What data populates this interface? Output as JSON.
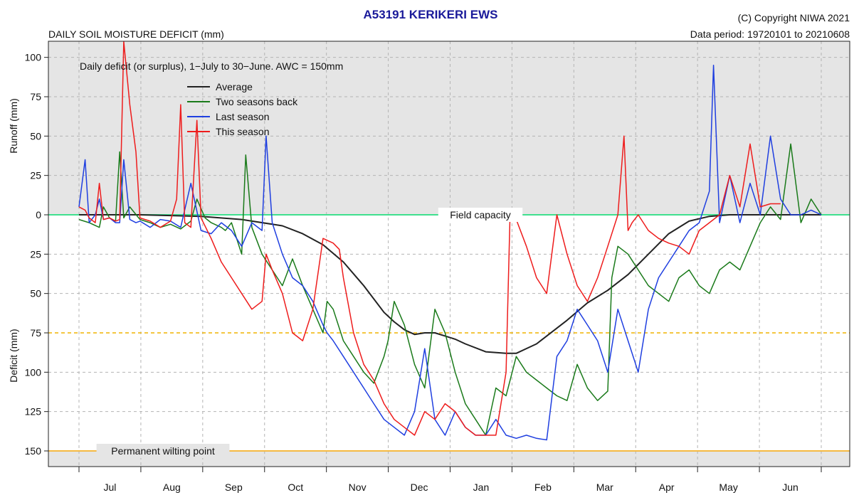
{
  "header": {
    "title": "A53191  KERIKERI EWS",
    "subtitle": "DAILY SOIL MOISTURE DEFICIT (mm)",
    "copyright": "(C) Copyright NIWA  2021",
    "data_period": "Data period:  19720101  to  20210608"
  },
  "chart_data": {
    "type": "line",
    "title": "A53191  KERIKERI EWS",
    "subtitle": "DAILY SOIL MOISTURE DEFICIT (mm)",
    "annotation": "Daily deficit (or surplus), 1−July to 30−June.  AWC = 150mm",
    "ylabel_top": "Runoff (mm)",
    "ylabel_bottom": "Deficit (mm)",
    "x_unit": "day of season (0 = 1 July)",
    "xlim": [
      0,
      365
    ],
    "ylim": [
      -110,
      160
    ],
    "y_axis_note": "Upper part (shaded) shows runoff above field capacity; lower part shows deficit, increasing downward.",
    "month_labels": [
      "Jul",
      "Aug",
      "Sep",
      "Oct",
      "Nov",
      "Dec",
      "Jan",
      "Feb",
      "Mar",
      "Apr",
      "May",
      "Jun"
    ],
    "y_ticks": [
      {
        "value": -100,
        "label": "100"
      },
      {
        "value": -75,
        "label": "75"
      },
      {
        "value": -50,
        "label": "50"
      },
      {
        "value": -25,
        "label": "25"
      },
      {
        "value": 0,
        "label": "0"
      },
      {
        "value": 25,
        "label": "25"
      },
      {
        "value": 50,
        "label": "50"
      },
      {
        "value": 75,
        "label": "75"
      },
      {
        "value": 100,
        "label": "100"
      },
      {
        "value": 125,
        "label": "125"
      },
      {
        "value": 150,
        "label": "150"
      }
    ],
    "reference_lines": [
      {
        "name": "Field capacity",
        "value": 0,
        "color": "#3fe08f",
        "style": "solid"
      },
      {
        "name": "",
        "value": 75,
        "color": "#f0b400",
        "style": "dashed"
      },
      {
        "name": "Permanent wilting point",
        "value": 150,
        "color": "#f5b942",
        "style": "solid"
      }
    ],
    "colors": {
      "surplus_background": "#e5e5e5",
      "grid": "#b4b4b4"
    },
    "legend_position": "top-left",
    "series": [
      {
        "name": "Average",
        "color": "#222222",
        "x": [
          0,
          30,
          60,
          80,
          100,
          110,
          120,
          130,
          140,
          150,
          155,
          160,
          165,
          170,
          175,
          180,
          185,
          190,
          200,
          210,
          215,
          220,
          225,
          230,
          240,
          250,
          260,
          270,
          280,
          290,
          300,
          310,
          320,
          330,
          340,
          350,
          365
        ],
        "y": [
          0,
          0,
          1,
          3,
          7,
          12,
          19,
          30,
          45,
          62,
          68,
          73,
          76,
          75,
          75,
          77,
          79,
          82,
          87,
          88,
          88,
          85,
          82,
          77,
          67,
          56,
          48,
          38,
          25,
          12,
          4,
          1,
          0,
          0,
          0,
          0,
          0
        ]
      },
      {
        "name": "Two seasons back",
        "color": "#1a7a1a",
        "x": [
          0,
          5,
          10,
          12,
          15,
          18,
          20,
          22,
          25,
          30,
          35,
          40,
          45,
          50,
          55,
          58,
          62,
          65,
          70,
          72,
          75,
          80,
          82,
          85,
          90,
          95,
          100,
          105,
          110,
          115,
          120,
          122,
          125,
          130,
          135,
          140,
          145,
          150,
          152,
          155,
          160,
          165,
          170,
          175,
          180,
          185,
          190,
          195,
          200,
          205,
          210,
          215,
          220,
          225,
          230,
          235,
          240,
          245,
          250,
          255,
          260,
          262,
          265,
          270,
          275,
          280,
          285,
          290,
          295,
          300,
          305,
          310,
          315,
          320,
          325,
          330,
          335,
          340,
          345,
          350,
          355,
          360,
          365
        ],
        "y": [
          3,
          5,
          8,
          -5,
          2,
          4,
          -40,
          2,
          -5,
          3,
          5,
          8,
          6,
          9,
          4,
          -10,
          2,
          5,
          8,
          10,
          5,
          25,
          -38,
          8,
          25,
          35,
          45,
          28,
          45,
          60,
          75,
          55,
          60,
          80,
          90,
          100,
          107,
          90,
          80,
          55,
          70,
          95,
          110,
          60,
          75,
          100,
          120,
          130,
          140,
          110,
          115,
          90,
          100,
          105,
          110,
          115,
          118,
          95,
          110,
          118,
          112,
          40,
          20,
          25,
          35,
          45,
          50,
          55,
          40,
          35,
          45,
          50,
          35,
          30,
          35,
          20,
          5,
          -5,
          3,
          -45,
          5,
          -10,
          0
        ]
      },
      {
        "name": "Last season",
        "color": "#1f3fe0",
        "x": [
          0,
          3,
          5,
          8,
          10,
          12,
          15,
          18,
          20,
          22,
          25,
          28,
          30,
          35,
          40,
          45,
          50,
          55,
          60,
          65,
          70,
          75,
          80,
          85,
          90,
          92,
          95,
          100,
          105,
          110,
          115,
          120,
          122,
          125,
          130,
          135,
          140,
          145,
          150,
          155,
          160,
          165,
          170,
          175,
          180,
          185,
          190,
          195,
          200,
          205,
          210,
          215,
          220,
          225,
          230,
          235,
          240,
          245,
          250,
          255,
          260,
          265,
          270,
          275,
          280,
          285,
          290,
          295,
          300,
          305,
          310,
          312,
          315,
          320,
          325,
          330,
          335,
          340,
          345,
          350,
          355,
          360,
          365
        ],
        "y": [
          -5,
          -35,
          5,
          0,
          -10,
          3,
          2,
          5,
          5,
          -35,
          3,
          5,
          4,
          8,
          3,
          4,
          8,
          -20,
          10,
          12,
          5,
          10,
          20,
          5,
          10,
          -50,
          5,
          25,
          40,
          45,
          55,
          70,
          75,
          80,
          90,
          100,
          110,
          120,
          130,
          135,
          140,
          125,
          85,
          130,
          140,
          125,
          135,
          140,
          140,
          130,
          140,
          142,
          140,
          142,
          143,
          90,
          80,
          60,
          70,
          80,
          100,
          60,
          80,
          100,
          60,
          40,
          30,
          20,
          10,
          5,
          -15,
          -95,
          5,
          -25,
          5,
          -20,
          0,
          -50,
          -10,
          0,
          0,
          -3,
          0
        ]
      },
      {
        "name": "This season",
        "color": "#ee1c1c",
        "x": [
          0,
          3,
          5,
          8,
          10,
          12,
          15,
          18,
          20,
          22,
          25,
          28,
          30,
          35,
          40,
          45,
          48,
          50,
          52,
          55,
          58,
          60,
          65,
          70,
          75,
          80,
          85,
          90,
          92,
          95,
          100,
          105,
          110,
          115,
          120,
          125,
          128,
          130,
          135,
          140,
          145,
          150,
          155,
          160,
          165,
          170,
          175,
          180,
          185,
          190,
          195,
          200,
          205,
          210,
          212,
          215,
          220,
          225,
          230,
          235,
          240,
          245,
          250,
          255,
          260,
          265,
          268,
          270,
          272,
          275,
          280,
          285,
          290,
          295,
          300,
          305,
          310,
          315,
          320,
          325,
          330,
          335,
          340,
          345
        ],
        "y": [
          -5,
          -3,
          2,
          5,
          -20,
          3,
          2,
          4,
          3,
          -110,
          -70,
          -40,
          2,
          4,
          8,
          4,
          -10,
          -70,
          5,
          8,
          -60,
          2,
          15,
          30,
          40,
          50,
          60,
          55,
          25,
          35,
          50,
          75,
          80,
          60,
          15,
          18,
          22,
          40,
          75,
          95,
          105,
          120,
          130,
          135,
          140,
          125,
          130,
          120,
          125,
          135,
          140,
          140,
          140,
          100,
          -2,
          3,
          20,
          40,
          50,
          0,
          25,
          45,
          55,
          40,
          20,
          0,
          -50,
          10,
          5,
          0,
          10,
          15,
          18,
          20,
          25,
          10,
          5,
          0,
          -25,
          -5,
          -45,
          -5,
          -7,
          -7
        ]
      }
    ]
  }
}
